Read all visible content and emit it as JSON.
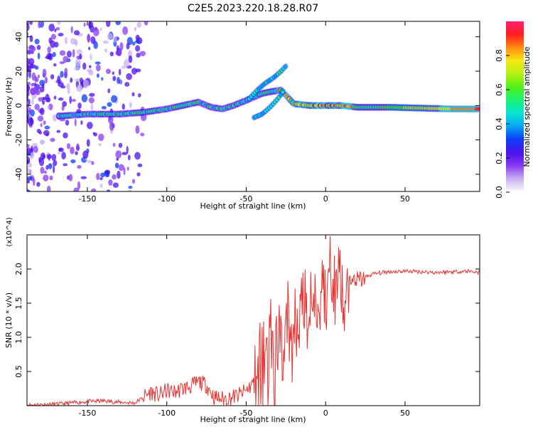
{
  "title": "C2E5.2023.220.18.28.R07",
  "chart_data": [
    {
      "type": "heatmap",
      "xlabel": "Height of straight line (km)",
      "ylabel": "Frequency (Hz)",
      "xlim": [
        -188,
        97
      ],
      "ylim": [
        -50,
        49
      ],
      "xticks": [
        -150,
        -100,
        -50,
        0,
        50
      ],
      "yticks": [
        -40,
        -20,
        0,
        20,
        40
      ],
      "colorbar": {
        "label": "Normalized spectral amplitude",
        "range": [
          0,
          1
        ],
        "ticks": [
          "0.0",
          "0.2",
          "0.4",
          "0.6",
          "0.8"
        ],
        "colormap": [
          "#ffffff",
          "#c9b3f2",
          "#8a3bf2",
          "#4b10ee",
          "#0d3cf5",
          "#08a4f4",
          "#07e6d4",
          "#19f277",
          "#4ff018",
          "#b7ef12",
          "#f5ea11",
          "#ff8b12",
          "#ff1d1d",
          "#ff1f6e"
        ]
      },
      "ridge": {
        "x": [
          -165,
          -150,
          -130,
          -115,
          -100,
          -90,
          -80,
          -72,
          -65,
          -58,
          -50,
          -45,
          -40,
          -35,
          -28,
          -20,
          -10,
          0,
          10,
          20,
          40,
          60,
          80,
          97
        ],
        "y": [
          -6,
          -5,
          -5,
          -4,
          -2,
          0,
          2,
          -1,
          -2,
          0,
          3,
          5,
          7,
          8,
          9,
          1,
          0,
          0,
          0,
          -1,
          -1,
          -1.5,
          -2,
          -2
        ]
      },
      "branches": [
        {
          "x": [
            -48,
            -43,
            -38,
            -33,
            -28,
            -25
          ],
          "y": [
            4,
            9,
            13,
            16,
            20,
            23
          ]
        },
        {
          "x": [
            -45,
            -40,
            -35,
            -30,
            -26
          ],
          "y": [
            -7,
            -5,
            -1,
            4,
            9
          ]
        }
      ]
    },
    {
      "type": "line",
      "xlabel": "Height of straight line (km)",
      "ylabel": "SNR (10 * v/v)",
      "scale_label": "(x10^4)",
      "xlim": [
        -188,
        97
      ],
      "ylim": [
        0,
        2.5
      ],
      "xticks": [
        -150,
        -100,
        -50,
        0,
        50
      ],
      "yticks": [
        "0.5",
        "1.0",
        "1.5",
        "2.0"
      ],
      "series": [
        {
          "color": "#e8302e",
          "x": [
            -188,
            -170,
            -160,
            -150,
            -140,
            -130,
            -120,
            -115,
            -110,
            -105,
            -100,
            -95,
            -90,
            -85,
            -80,
            -75,
            -70,
            -65,
            -60,
            -55,
            -50,
            -45,
            -42,
            -40,
            -37,
            -35,
            -32,
            -30,
            -27,
            -25,
            -22,
            -20,
            -17,
            -15,
            -12,
            -10,
            -7,
            -5,
            -2,
            0,
            3,
            5,
            8,
            10,
            12,
            15,
            18,
            20,
            25,
            30,
            40,
            50,
            60,
            70,
            80,
            90,
            97
          ],
          "y": [
            0.01,
            0.02,
            0.04,
            0.06,
            0.07,
            0.05,
            0.04,
            0.12,
            0.2,
            0.15,
            0.22,
            0.2,
            0.25,
            0.28,
            0.35,
            0.3,
            0.12,
            0.1,
            0.12,
            0.15,
            0.22,
            0.35,
            0.55,
            0.45,
            0.7,
            0.9,
            0.65,
            1.0,
            0.8,
            1.25,
            0.95,
            1.35,
            1.05,
            1.5,
            1.2,
            1.4,
            1.65,
            1.45,
            1.75,
            1.5,
            1.8,
            1.6,
            2.0,
            1.85,
            1.55,
            1.75,
            1.85,
            1.82,
            1.88,
            1.93,
            1.96,
            1.97,
            1.96,
            1.95,
            1.96,
            1.97,
            1.95
          ]
        }
      ]
    }
  ]
}
